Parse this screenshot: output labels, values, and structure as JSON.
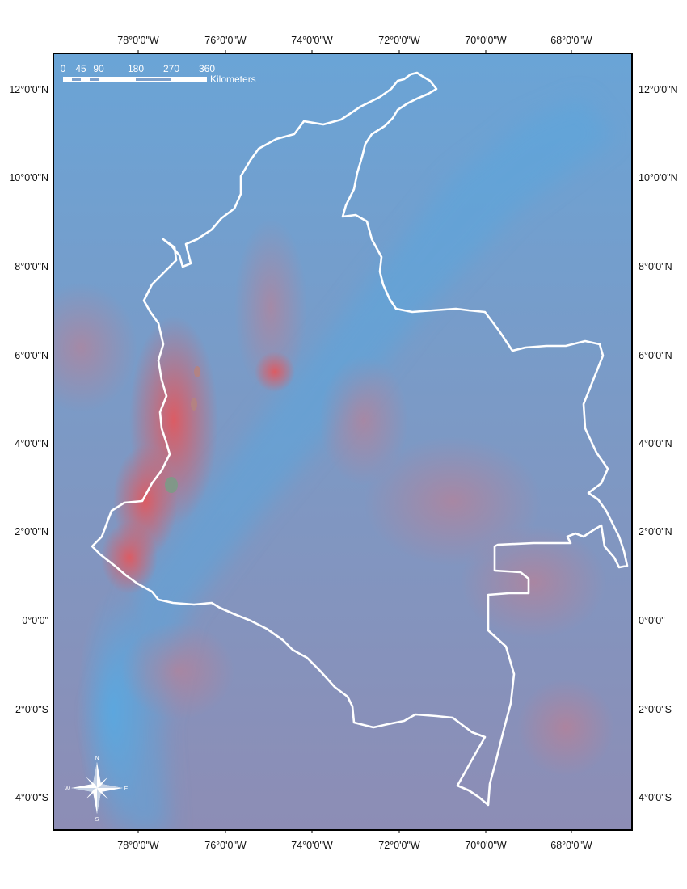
{
  "map": {
    "lon_labels": [
      "78°0'0\"W",
      "76°0'0\"W",
      "74°0'0\"W",
      "72°0'0\"W",
      "70°0'0\"W",
      "68°0'0\"W"
    ],
    "lat_labels": [
      "12°0'0\"N",
      "10°0'0\"N",
      "8°0'0\"N",
      "6°0'0\"N",
      "4°0'0\"N",
      "2°0'0\"N",
      "0°0'0\"",
      "2°0'0\"S",
      "4°0'0\"S"
    ],
    "scale_bar": {
      "ticks": [
        "0",
        "45",
        "90",
        "180",
        "270",
        "360"
      ],
      "unit": "Kilometers"
    },
    "compass": {
      "n": "N",
      "s": "S",
      "e": "E",
      "w": "W",
      "icon": "compass-rose-icon"
    },
    "colors": {
      "background_blue": "#6da3d4",
      "background_purple": "#8e8eb4",
      "hotspot_red": "#d9646a",
      "outline": "#ffffff"
    }
  }
}
